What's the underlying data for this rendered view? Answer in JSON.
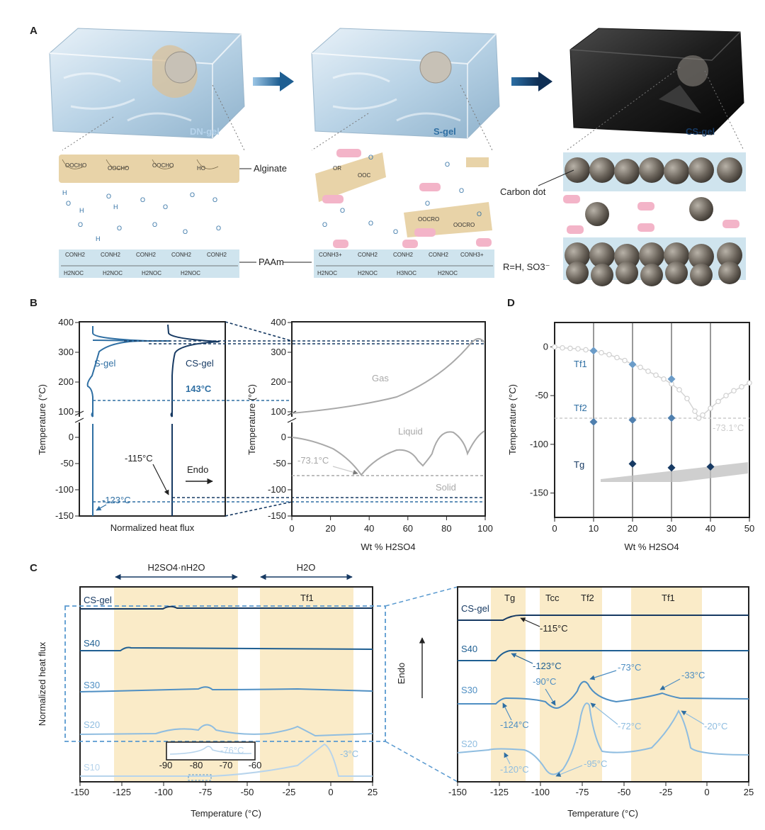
{
  "colors": {
    "dark_navy": "#173a63",
    "mid_blue": "#2f6fa3",
    "light_blue": "#8fbde0",
    "pale_blue": "#b7d4ec",
    "gray": "#a9a9a9",
    "band": "#faebc8",
    "alginate": "#e8d3a8",
    "paam": "#cfe4ee",
    "pink": "#f3b4c8"
  },
  "panel_a": {
    "label": "A",
    "gels": [
      "DN-gel",
      "S-gel",
      "CS-gel"
    ],
    "alginate": "Alginate",
    "paam": "PAAm",
    "carbon_dot": "Carbon dot",
    "r_group": "R=H, SO3⁻"
  },
  "panel_b": {
    "label": "B",
    "left": {
      "ylabel": "Temperature (°C)",
      "xlabel": "Normalized heat flux",
      "yticks_upper": [
        "400",
        "300",
        "200",
        "100"
      ],
      "yticks_lower": [
        "0",
        "-50",
        "-100",
        "-150"
      ],
      "curves": [
        "S-gel",
        "CS-gel"
      ],
      "annotations": [
        "143°C",
        "-115°C",
        "-123°C"
      ],
      "endo": "Endo"
    },
    "right": {
      "ylabel": "Temperature (°C)",
      "xlabel": "Wt % H2SO4",
      "yticks_upper": [
        "400",
        "300",
        "200",
        "100"
      ],
      "yticks_lower": [
        "0",
        "-50",
        "-100",
        "-150"
      ],
      "xticks": [
        "0",
        "20",
        "40",
        "60",
        "80",
        "100"
      ],
      "regions": [
        "Gas",
        "Liquid",
        "Solid"
      ],
      "annotation": "-73.1°C"
    }
  },
  "panel_d": {
    "label": "D",
    "ylabel": "Temperature (°C)",
    "xlabel": "Wt % H2SO4",
    "yticks": [
      "0",
      "-50",
      "-100",
      "-150"
    ],
    "xticks": [
      "0",
      "10",
      "20",
      "30",
      "40",
      "50"
    ],
    "series_labels": [
      "Tf1",
      "Tf2",
      "Tg"
    ],
    "annotation": "-73.1°C"
  },
  "panel_c": {
    "label": "C",
    "top_labels": [
      "H2SO4·nH2O",
      "H2O"
    ],
    "left": {
      "ylabel": "Normalized heat flux",
      "xlabel": "Temperature (°C)",
      "xticks": [
        "-150",
        "-125",
        "-100",
        "-75",
        "-50",
        "-25",
        "0",
        "25"
      ],
      "band_label": "Tf1",
      "traces": [
        "CS-gel",
        "S40",
        "S30",
        "S20",
        "S10"
      ],
      "inset_xticks": [
        "-90",
        "-80",
        "-70",
        "-60"
      ],
      "inset_annotation": "-76°C",
      "peak_annotation": "-3°C"
    },
    "right": {
      "xlabel": "Temperature (°C)",
      "xticks": [
        "-150",
        "-125",
        "-100",
        "-75",
        "-50",
        "-25",
        "0",
        "25"
      ],
      "band_labels": [
        "Tg",
        "Tcc",
        "Tf2",
        "Tf1"
      ],
      "traces": [
        "CS-gel",
        "S40",
        "S30",
        "S20"
      ],
      "endo": "Endo",
      "annotations": [
        "-115°C",
        "-123°C",
        "-90°C",
        "-73°C",
        "-33°C",
        "-124°C",
        "-72°C",
        "-20°C",
        "-120°C",
        "-95°C"
      ]
    }
  },
  "chart_data": [
    {
      "type": "line",
      "panel": "D",
      "xlabel": "Wt % H2SO4",
      "ylabel": "Temperature (°C)",
      "xlim": [
        0,
        50
      ],
      "ylim": [
        -175,
        25
      ],
      "series": [
        {
          "name": "Tf1",
          "x": [
            10,
            20,
            30
          ],
          "y": [
            -4,
            -18,
            -33
          ]
        },
        {
          "name": "Tf2",
          "x": [
            10,
            20,
            30
          ],
          "y": [
            -77,
            -75,
            -73
          ]
        },
        {
          "name": "Tg",
          "x": [
            20,
            30,
            40
          ],
          "y": [
            -120,
            -124,
            -123
          ]
        }
      ],
      "reference_curve": {
        "x": [
          0,
          2,
          4,
          6,
          8,
          10,
          12,
          14,
          16,
          18,
          20,
          22,
          24,
          26,
          28,
          30,
          32,
          34,
          36,
          37,
          38,
          40,
          42,
          44,
          46,
          48,
          50
        ],
        "y": [
          0,
          -1,
          -1.5,
          -2,
          -3,
          -4,
          -6,
          -8,
          -11,
          -14,
          -18,
          -21,
          -25,
          -29,
          -33,
          -38,
          -44,
          -53,
          -66,
          -73.1,
          -70,
          -63,
          -56,
          -50,
          -45,
          -41,
          -37
        ]
      },
      "eutectic": -73.1
    }
  ]
}
